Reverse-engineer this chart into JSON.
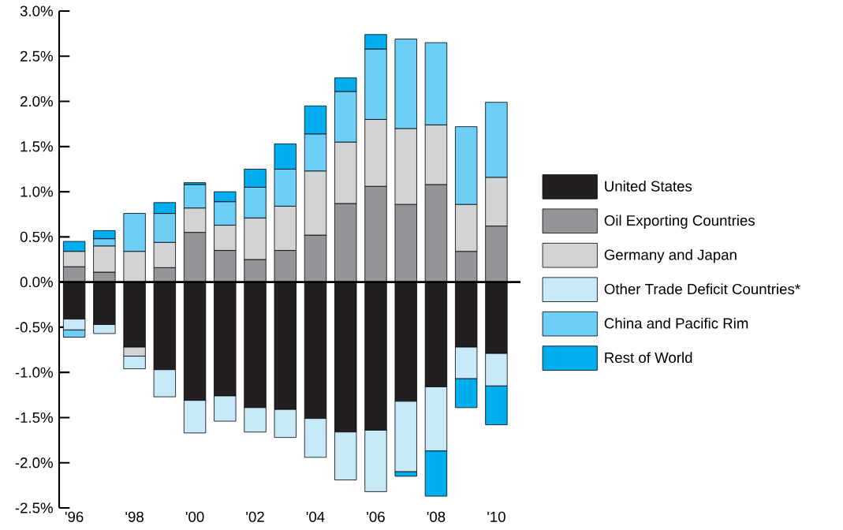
{
  "chart_data": {
    "type": "bar",
    "stacked": true,
    "categories": [
      "'96",
      null,
      "'98",
      null,
      "'00",
      null,
      "'02",
      null,
      "'04",
      null,
      "'06",
      null,
      "'08",
      null,
      "'10"
    ],
    "series": [
      {
        "name": "United States",
        "color": "#231f20",
        "values": [
          -0.41,
          -0.47,
          -0.72,
          -0.97,
          -1.31,
          -1.26,
          -1.39,
          -1.41,
          -1.51,
          -1.66,
          -1.64,
          -1.32,
          -1.16,
          -0.72,
          -0.79
        ]
      },
      {
        "name": "Oil Exporting Countries",
        "color": "#939598",
        "colors": [
          "#939598",
          "#939598",
          "#d1d3d4",
          "#939598",
          "#939598",
          "#939598",
          "#939598",
          "#939598",
          "#939598",
          "#939598",
          "#939598",
          "#939598",
          "#939598",
          "#939598",
          "#939598"
        ],
        "values": [
          0.17,
          0.11,
          -0.1,
          0.16,
          0.55,
          0.35,
          0.25,
          0.35,
          0.52,
          0.87,
          1.06,
          0.86,
          1.08,
          0.34,
          0.62
        ]
      },
      {
        "name": "Germany and Japan",
        "color": "#d1d3d4",
        "values": [
          0.17,
          0.29,
          0.34,
          0.28,
          0.27,
          0.28,
          0.46,
          0.49,
          0.71,
          0.68,
          0.74,
          0.84,
          0.66,
          0.52,
          0.54
        ]
      },
      {
        "name": "Other Trade Deficit Countries*",
        "color": "#c7e9f8",
        "values": [
          -0.12,
          -0.1,
          -0.14,
          -0.3,
          -0.36,
          -0.28,
          -0.27,
          -0.31,
          -0.43,
          -0.53,
          -0.68,
          -0.78,
          -0.71,
          -0.35,
          -0.36
        ]
      },
      {
        "name": "China and Pacific Rim",
        "color": "#6dcff6",
        "values": [
          -0.08,
          0.08,
          0.42,
          0.32,
          0.26,
          0.26,
          0.34,
          0.41,
          0.41,
          0.56,
          0.78,
          0.99,
          0.91,
          0.86,
          0.83
        ]
      },
      {
        "name": "Rest of World",
        "color": "#00aeef",
        "values": [
          0.11,
          0.09,
          null,
          0.12,
          0.02,
          0.11,
          0.2,
          0.28,
          0.31,
          0.15,
          0.16,
          -0.05,
          -0.5,
          -0.32,
          -0.43
        ]
      }
    ],
    "ylim": [
      -2.5,
      3.0
    ],
    "yticks": [
      {
        "value": -2.5,
        "label": "-2.5%"
      },
      {
        "value": -2.0,
        "label": "-2.0%"
      },
      {
        "value": -1.5,
        "label": "-1.5%"
      },
      {
        "value": -1.0,
        "label": "-1.0%"
      },
      {
        "value": -0.5,
        "label": "-0.5%"
      },
      {
        "value": 0,
        "label": "0.0%"
      },
      {
        "value": 0.5,
        "label": "0.5%"
      },
      {
        "value": 1.0,
        "label": "1.0%"
      },
      {
        "value": 1.5,
        "label": "1.5%"
      },
      {
        "value": 2.0,
        "label": "2.0%"
      },
      {
        "value": 2.5,
        "label": "2.5%"
      },
      {
        "value": 3.0,
        "label": "3.0%"
      }
    ],
    "legend": "right"
  }
}
